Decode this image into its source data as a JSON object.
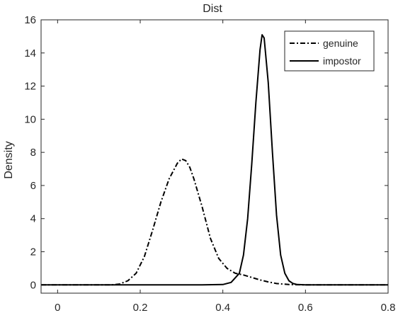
{
  "chart_data": {
    "type": "line",
    "title": "Dist",
    "xlabel": "",
    "ylabel": "Density",
    "xlim": [
      -0.04,
      0.8
    ],
    "ylim": [
      -0.5,
      16
    ],
    "xticks": [
      0,
      0.2,
      0.4,
      0.6,
      0.8
    ],
    "xtick_labels": [
      "0",
      "0.2",
      "0.4",
      "0.6",
      "0.8"
    ],
    "yticks": [
      0,
      2,
      4,
      6,
      8,
      10,
      12,
      14,
      16
    ],
    "ytick_labels": [
      "0",
      "2",
      "4",
      "6",
      "8",
      "10",
      "12",
      "14",
      "16"
    ],
    "grid": false,
    "legend_position": "top-right",
    "series": [
      {
        "name": "genuine",
        "line_style": "dash-dot",
        "color": "#000000",
        "x": [
          -0.04,
          0.13,
          0.15,
          0.17,
          0.19,
          0.21,
          0.23,
          0.25,
          0.27,
          0.29,
          0.3,
          0.31,
          0.32,
          0.33,
          0.35,
          0.37,
          0.39,
          0.41,
          0.43,
          0.45,
          0.47,
          0.49,
          0.51,
          0.53,
          0.56,
          0.6,
          0.66,
          0.8
        ],
        "y": [
          0,
          0,
          0.05,
          0.25,
          0.7,
          1.7,
          3.3,
          5.0,
          6.4,
          7.35,
          7.6,
          7.5,
          7.1,
          6.4,
          4.7,
          2.8,
          1.6,
          1.0,
          0.7,
          0.6,
          0.45,
          0.3,
          0.18,
          0.08,
          0.02,
          0.0,
          0,
          0
        ]
      },
      {
        "name": "impostor",
        "line_style": "solid",
        "color": "#000000",
        "x": [
          -0.04,
          0.35,
          0.4,
          0.42,
          0.44,
          0.45,
          0.46,
          0.47,
          0.48,
          0.49,
          0.495,
          0.5,
          0.51,
          0.52,
          0.53,
          0.54,
          0.55,
          0.56,
          0.57,
          0.58,
          0.6,
          0.67,
          0.8
        ],
        "y": [
          0,
          0,
          0.02,
          0.15,
          0.7,
          1.8,
          4.0,
          7.3,
          11.0,
          14.2,
          15.1,
          14.9,
          12.2,
          8.0,
          4.2,
          1.8,
          0.7,
          0.25,
          0.08,
          0.02,
          0,
          0,
          0
        ]
      }
    ]
  }
}
